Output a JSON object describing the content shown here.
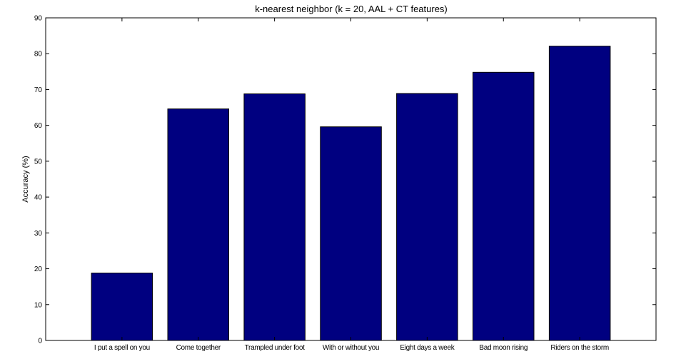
{
  "chart_data": {
    "type": "bar",
    "title": "k-nearest neighbor (k = 20, AAL + CT features)",
    "xlabel": "",
    "ylabel": "Accuracy (%)",
    "categories": [
      "I put a spell on you",
      "Come together",
      "Trampled under foot",
      "With or without you",
      "Eight days a week",
      "Bad moon rising",
      "Riders on the storm"
    ],
    "values": [
      18.8,
      64.6,
      68.8,
      59.6,
      68.9,
      74.8,
      82.1
    ],
    "ylim": [
      0,
      90
    ],
    "yticks": [
      0,
      10,
      20,
      30,
      40,
      50,
      60,
      70,
      80,
      90
    ],
    "xlim": [
      0,
      8
    ],
    "grid": false,
    "bar_color": "#000080",
    "bar_edge_color": "#000000"
  }
}
